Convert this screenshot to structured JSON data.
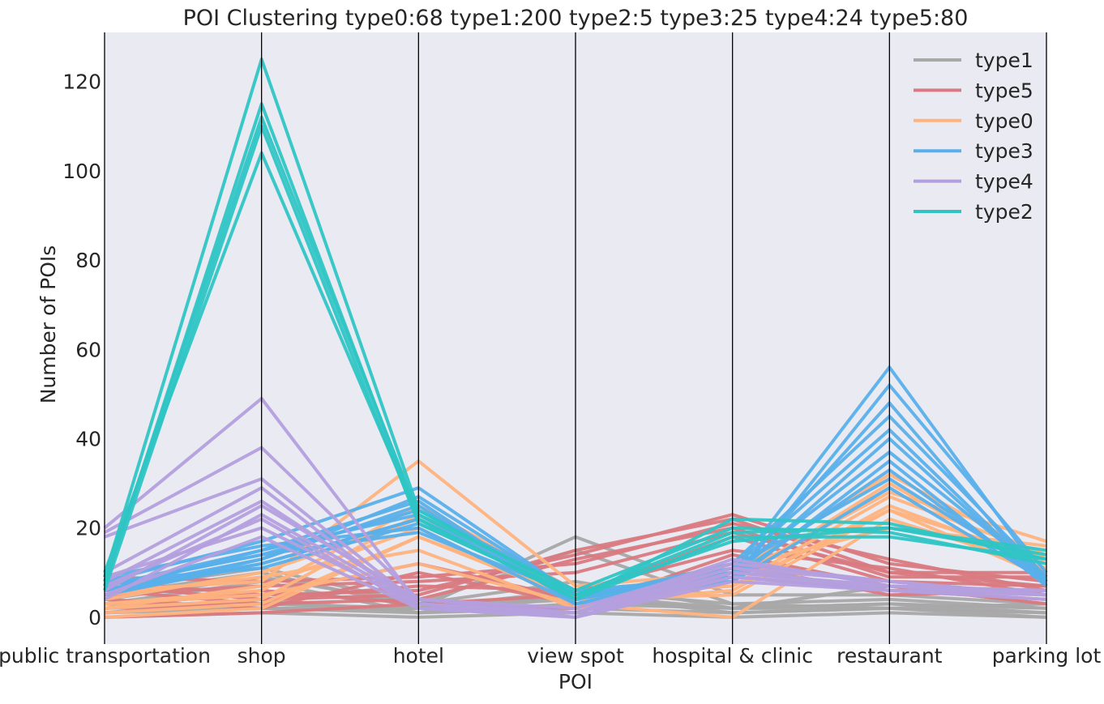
{
  "chart_data": {
    "type": "line",
    "subtype": "parallel-coordinates",
    "title": "POI Clustering  type0:68  type1:200  type2:5  type3:25  type4:24  type5:80",
    "xlabel": "POI",
    "ylabel": "Number of POIs",
    "categories": [
      "public transportation",
      "shop",
      "hotel",
      "view spot",
      "hospital & clinic",
      "restaurant",
      "parking lot"
    ],
    "ylim": [
      -6,
      131
    ],
    "yticks": [
      0,
      20,
      40,
      60,
      80,
      100,
      120
    ],
    "grid": false,
    "legend_position": "top-right",
    "background": "#eaeaf2",
    "series": [
      {
        "name": "type1",
        "color": "#a8a8a8",
        "width": 4,
        "lines": [
          [
            5,
            10,
            2,
            18,
            5,
            5,
            3
          ],
          [
            4,
            9,
            3,
            15,
            3,
            4,
            2
          ],
          [
            3,
            8,
            1,
            3,
            2,
            3,
            1
          ],
          [
            2,
            4,
            1,
            5,
            1,
            2,
            1
          ],
          [
            1,
            2,
            1,
            2,
            1,
            2,
            1
          ],
          [
            6,
            11,
            3,
            8,
            2,
            7,
            3
          ],
          [
            0,
            1,
            0,
            1,
            0,
            1,
            0
          ],
          [
            2,
            3,
            2,
            4,
            2,
            3,
            2
          ],
          [
            3,
            2,
            2,
            6,
            3,
            2,
            3
          ],
          [
            1,
            3,
            2,
            5,
            2,
            2,
            0
          ]
        ]
      },
      {
        "name": "type5",
        "color": "#d97a80",
        "width": 4,
        "lines": [
          [
            8,
            5,
            6,
            14,
            23,
            12,
            8
          ],
          [
            7,
            4,
            5,
            15,
            22,
            10,
            10
          ],
          [
            6,
            3,
            4,
            13,
            20,
            9,
            9
          ],
          [
            2,
            6,
            3,
            5,
            18,
            8,
            7
          ],
          [
            1,
            4,
            7,
            6,
            15,
            11,
            5
          ],
          [
            9,
            8,
            9,
            12,
            21,
            13,
            6
          ],
          [
            4,
            2,
            10,
            3,
            9,
            6,
            4
          ],
          [
            3,
            5,
            12,
            4,
            12,
            5,
            6
          ],
          [
            0,
            1,
            3,
            2,
            14,
            7,
            3
          ],
          [
            5,
            7,
            8,
            10,
            19,
            10,
            7
          ]
        ]
      },
      {
        "name": "type0",
        "color": "#ffb37e",
        "width": 4,
        "lines": [
          [
            6,
            8,
            35,
            7,
            10,
            32,
            13
          ],
          [
            3,
            6,
            25,
            6,
            9,
            28,
            17
          ],
          [
            4,
            10,
            22,
            5,
            7,
            27,
            14
          ],
          [
            2,
            7,
            20,
            3,
            6,
            25,
            12
          ],
          [
            1,
            3,
            18,
            4,
            5,
            24,
            13
          ],
          [
            5,
            9,
            15,
            2,
            8,
            30,
            10
          ],
          [
            3,
            5,
            12,
            3,
            0,
            22,
            11
          ],
          [
            2,
            4,
            23,
            4,
            11,
            20,
            16
          ],
          [
            0,
            2,
            18,
            5,
            7,
            24,
            9
          ]
        ]
      },
      {
        "name": "type3",
        "color": "#58b0ea",
        "width": 4,
        "lines": [
          [
            8,
            17,
            29,
            5,
            10,
            56,
            8
          ],
          [
            6,
            15,
            26,
            3,
            8,
            52,
            10
          ],
          [
            7,
            14,
            24,
            6,
            9,
            48,
            7
          ],
          [
            5,
            12,
            22,
            4,
            12,
            45,
            9
          ],
          [
            9,
            16,
            20,
            3,
            11,
            42,
            8
          ],
          [
            6,
            13,
            27,
            5,
            9,
            40,
            8
          ],
          [
            7,
            15,
            23,
            4,
            10,
            37,
            9
          ],
          [
            8,
            11,
            21,
            5,
            8,
            35,
            7
          ],
          [
            5,
            13,
            25,
            3,
            9,
            33,
            8
          ],
          [
            6,
            12,
            22,
            4,
            11,
            31,
            9
          ],
          [
            7,
            14,
            19,
            5,
            8,
            29,
            8
          ]
        ]
      },
      {
        "name": "type4",
        "color": "#b49fde",
        "width": 4,
        "lines": [
          [
            20,
            49,
            3,
            1,
            13,
            7,
            6
          ],
          [
            19,
            38,
            4,
            2,
            12,
            8,
            5
          ],
          [
            18,
            31,
            3,
            1,
            11,
            6,
            6
          ],
          [
            10,
            29,
            2,
            0,
            10,
            7,
            5
          ],
          [
            8,
            26,
            3,
            1,
            9,
            6,
            5
          ],
          [
            6,
            25,
            4,
            1,
            12,
            8,
            5
          ],
          [
            4,
            23,
            3,
            0,
            8,
            6,
            4
          ],
          [
            7,
            22,
            2,
            1,
            11,
            8,
            5
          ],
          [
            9,
            20,
            3,
            1,
            10,
            7,
            6
          ],
          [
            5,
            18,
            2,
            0,
            9,
            7,
            5
          ]
        ]
      },
      {
        "name": "type2",
        "color": "#2fc5c5",
        "width": 4,
        "lines": [
          [
            9,
            125,
            24,
            5,
            17,
            20,
            14
          ],
          [
            7,
            115,
            22,
            4,
            22,
            21,
            13
          ],
          [
            8,
            112,
            23,
            6,
            20,
            19,
            12
          ],
          [
            6,
            110,
            21,
            5,
            19,
            20,
            15
          ],
          [
            10,
            104,
            22,
            4,
            18,
            18,
            13
          ]
        ]
      }
    ]
  }
}
